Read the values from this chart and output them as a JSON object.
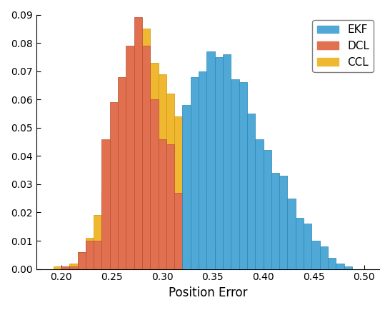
{
  "title": "",
  "xlabel": "Position Error",
  "ylabel": "",
  "xlim": [
    0.175,
    0.515
  ],
  "ylim": [
    0,
    0.09
  ],
  "yticks": [
    0,
    0.01,
    0.02,
    0.03,
    0.04,
    0.05,
    0.06,
    0.07,
    0.08,
    0.09
  ],
  "xticks": [
    0.2,
    0.25,
    0.3,
    0.35,
    0.4,
    0.45,
    0.5
  ],
  "bin_edges": [
    0.176,
    0.184,
    0.192,
    0.2,
    0.208,
    0.216,
    0.224,
    0.232,
    0.24,
    0.248,
    0.256,
    0.264,
    0.272,
    0.28,
    0.288,
    0.296,
    0.304,
    0.312,
    0.32,
    0.328,
    0.336,
    0.344,
    0.352,
    0.36,
    0.368,
    0.376,
    0.384,
    0.392,
    0.4,
    0.408,
    0.416,
    0.424,
    0.432,
    0.44,
    0.448,
    0.456,
    0.464,
    0.472,
    0.48,
    0.488,
    0.496,
    0.504,
    0.512
  ],
  "ekf_heights": [
    0.0,
    0.0,
    0.0,
    0.0,
    0.0,
    0.0,
    0.0,
    0.0,
    0.0,
    0.0,
    0.0,
    0.0,
    0.0,
    0.0,
    0.0,
    0.0,
    0.0,
    0.0,
    0.058,
    0.068,
    0.07,
    0.077,
    0.075,
    0.076,
    0.067,
    0.066,
    0.055,
    0.046,
    0.042,
    0.034,
    0.033,
    0.025,
    0.018,
    0.016,
    0.01,
    0.008,
    0.004,
    0.002,
    0.001,
    0.0,
    0.0,
    0.0
  ],
  "dcl_heights": [
    0.0,
    0.0,
    0.0,
    0.001,
    0.001,
    0.006,
    0.01,
    0.01,
    0.046,
    0.059,
    0.068,
    0.079,
    0.089,
    0.079,
    0.06,
    0.046,
    0.044,
    0.027,
    0.002,
    0.001,
    0.0,
    0.0,
    0.0,
    0.0,
    0.0,
    0.0,
    0.0,
    0.0,
    0.0,
    0.0,
    0.0,
    0.0,
    0.0,
    0.0,
    0.0,
    0.0,
    0.0,
    0.0,
    0.0,
    0.0,
    0.0,
    0.0
  ],
  "ccl_heights": [
    0.0,
    0.0,
    0.001,
    0.001,
    0.002,
    0.006,
    0.011,
    0.019,
    0.028,
    0.031,
    0.046,
    0.061,
    0.074,
    0.085,
    0.073,
    0.069,
    0.062,
    0.054,
    0.046,
    0.031,
    0.027,
    0.02,
    0.01,
    0.007,
    0.003,
    0.001,
    0.0,
    0.0,
    0.0,
    0.0,
    0.0,
    0.0,
    0.0,
    0.0,
    0.0,
    0.0,
    0.0,
    0.0,
    0.0,
    0.0,
    0.0,
    0.0
  ],
  "ekf_color": "#4fa8d5",
  "dcl_color": "#e07050",
  "ccl_color": "#f0b830",
  "legend_labels": [
    "EKF",
    "DCL",
    "CCL"
  ],
  "figsize": [
    5.46,
    4.34
  ],
  "dpi": 100
}
